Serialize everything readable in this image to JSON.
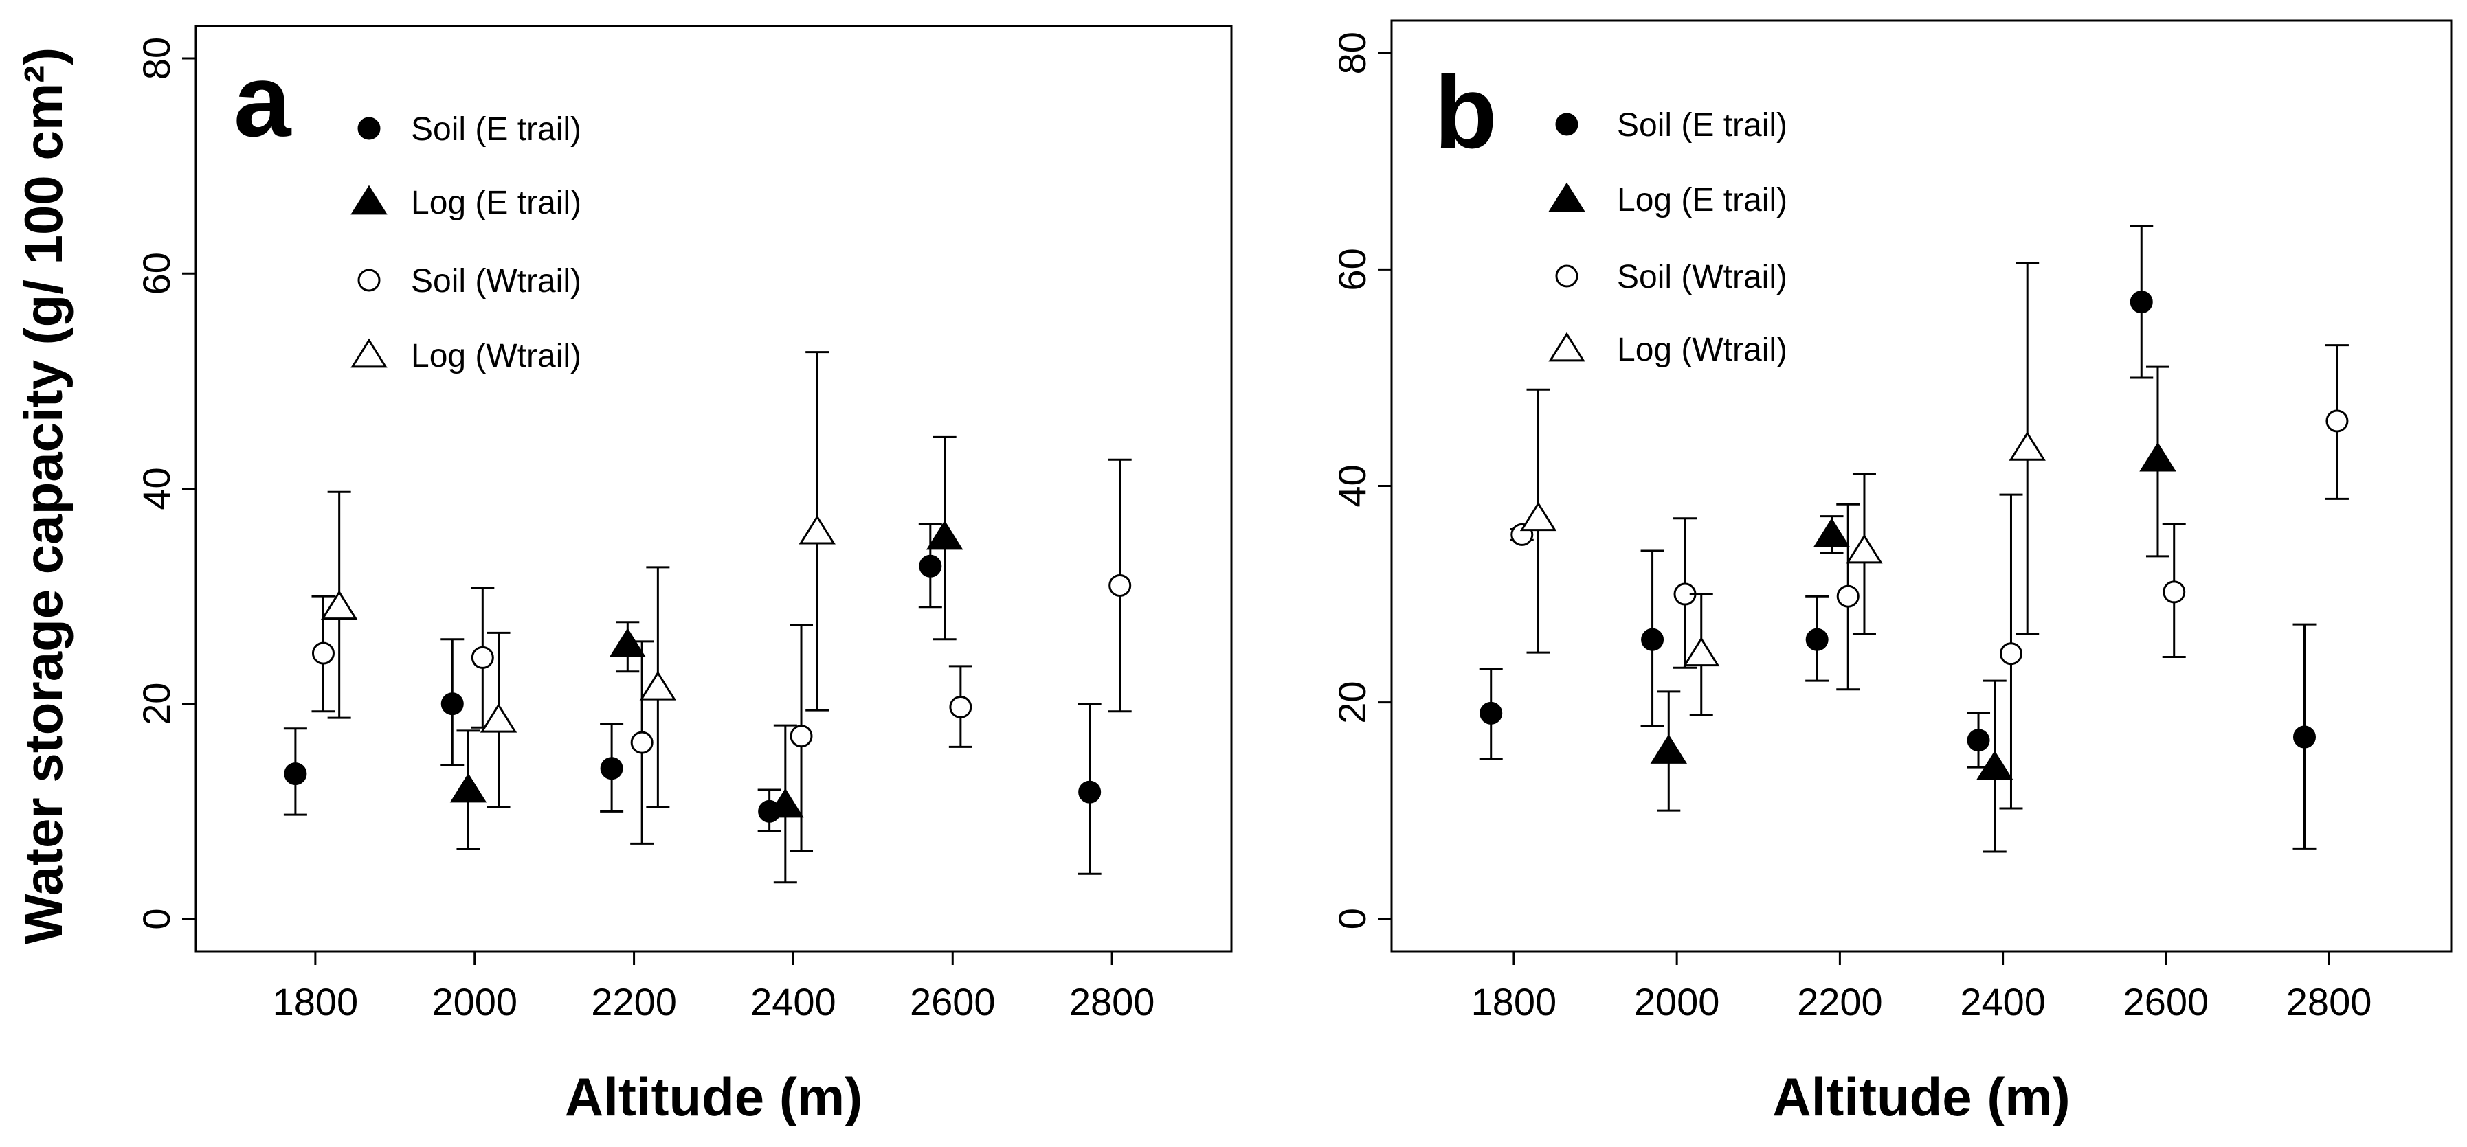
{
  "ylabel_shared": "Water storage capacity (g/ 100 cm²)",
  "chart_data": [
    {
      "panel": "a",
      "type": "scatter",
      "xlabel": "Altitude (m)",
      "ylabel": "Water storage capacity (g/ 100 cm²)",
      "xlim": [
        1650,
        2950
      ],
      "ylim": [
        -3,
        83
      ],
      "xticks": [
        1800,
        2000,
        2200,
        2400,
        2600,
        2800
      ],
      "yticks": [
        0,
        20,
        40,
        60,
        80
      ],
      "legend_position": "top-left",
      "series": [
        {
          "name": "Soil (E trail)",
          "marker": "filled-circle",
          "points": [
            {
              "x": 1775,
              "y": 13.5,
              "lo": 9.7,
              "hi": 17.7
            },
            {
              "x": 1972,
              "y": 20.0,
              "lo": 14.3,
              "hi": 26.0
            },
            {
              "x": 2172,
              "y": 14.0,
              "lo": 10.0,
              "hi": 18.1
            },
            {
              "x": 2370,
              "y": 10.0,
              "lo": 8.2,
              "hi": 12.0
            },
            {
              "x": 2572,
              "y": 32.8,
              "lo": 29.0,
              "hi": 36.7
            },
            {
              "x": 2772,
              "y": 11.8,
              "lo": 4.2,
              "hi": 20.0
            }
          ]
        },
        {
          "name": "Log (E trail)",
          "marker": "filled-triangle",
          "points": [
            {
              "x": 1992,
              "y": 12.0,
              "lo": 6.5,
              "hi": 17.5
            },
            {
              "x": 2192,
              "y": 25.5,
              "lo": 23.0,
              "hi": 27.6
            },
            {
              "x": 2390,
              "y": 10.6,
              "lo": 3.4,
              "hi": 18.0
            },
            {
              "x": 2590,
              "y": 35.5,
              "lo": 26.0,
              "hi": 44.8
            }
          ]
        },
        {
          "name": "Soil (Wtrail)",
          "marker": "open-circle",
          "points": [
            {
              "x": 1810,
              "y": 24.7,
              "lo": 19.3,
              "hi": 30.0
            },
            {
              "x": 2010,
              "y": 24.3,
              "lo": 17.8,
              "hi": 30.8
            },
            {
              "x": 2210,
              "y": 16.4,
              "lo": 7.0,
              "hi": 25.8
            },
            {
              "x": 2410,
              "y": 17.0,
              "lo": 6.3,
              "hi": 27.3
            },
            {
              "x": 2610,
              "y": 19.7,
              "lo": 16.0,
              "hi": 23.5
            },
            {
              "x": 2810,
              "y": 31.0,
              "lo": 19.3,
              "hi": 42.7
            }
          ]
        },
        {
          "name": "Log (Wtrail)",
          "marker": "open-triangle",
          "points": [
            {
              "x": 1830,
              "y": 29.0,
              "lo": 18.7,
              "hi": 39.7
            },
            {
              "x": 2030,
              "y": 18.5,
              "lo": 10.4,
              "hi": 26.6
            },
            {
              "x": 2230,
              "y": 21.5,
              "lo": 10.4,
              "hi": 32.7
            },
            {
              "x": 2430,
              "y": 36.0,
              "lo": 19.4,
              "hi": 52.7
            }
          ]
        }
      ]
    },
    {
      "panel": "b",
      "type": "scatter",
      "xlabel": "Altitude (m)",
      "ylabel": "",
      "xlim": [
        1650,
        2950
      ],
      "ylim": [
        -3,
        83
      ],
      "xticks": [
        1800,
        2000,
        2200,
        2400,
        2600,
        2800
      ],
      "yticks": [
        0,
        20,
        40,
        60,
        80
      ],
      "legend_position": "top-left",
      "series": [
        {
          "name": "Soil (E trail)",
          "marker": "filled-circle",
          "points": [
            {
              "x": 1772,
              "y": 19.0,
              "lo": 14.8,
              "hi": 23.1
            },
            {
              "x": 1970,
              "y": 25.8,
              "lo": 17.8,
              "hi": 34.0
            },
            {
              "x": 2172,
              "y": 25.8,
              "lo": 22.0,
              "hi": 29.8
            },
            {
              "x": 2370,
              "y": 16.5,
              "lo": 14.0,
              "hi": 19.0
            },
            {
              "x": 2570,
              "y": 57.0,
              "lo": 50.0,
              "hi": 64.0
            },
            {
              "x": 2770,
              "y": 16.8,
              "lo": 6.5,
              "hi": 27.2
            }
          ]
        },
        {
          "name": "Log (E trail)",
          "marker": "filled-triangle",
          "points": [
            {
              "x": 1990,
              "y": 15.5,
              "lo": 10.0,
              "hi": 21.0
            },
            {
              "x": 2190,
              "y": 35.5,
              "lo": 33.8,
              "hi": 37.2
            },
            {
              "x": 2390,
              "y": 14.0,
              "lo": 6.2,
              "hi": 22.0
            },
            {
              "x": 2590,
              "y": 42.5,
              "lo": 33.5,
              "hi": 51.0
            }
          ]
        },
        {
          "name": "Soil (Wtrail)",
          "marker": "open-circle",
          "points": [
            {
              "x": 1810,
              "y": 35.5,
              "lo": 35.0,
              "hi": 36.0
            },
            {
              "x": 2010,
              "y": 30.0,
              "lo": 23.2,
              "hi": 37.0
            },
            {
              "x": 2210,
              "y": 29.8,
              "lo": 21.2,
              "hi": 38.3
            },
            {
              "x": 2410,
              "y": 24.5,
              "lo": 10.2,
              "hi": 39.2
            },
            {
              "x": 2610,
              "y": 30.2,
              "lo": 24.2,
              "hi": 36.5
            },
            {
              "x": 2810,
              "y": 46.0,
              "lo": 38.8,
              "hi": 53.0
            }
          ]
        },
        {
          "name": "Log (Wtrail)",
          "marker": "open-triangle",
          "points": [
            {
              "x": 1830,
              "y": 37.0,
              "lo": 24.6,
              "hi": 48.9
            },
            {
              "x": 2030,
              "y": 24.5,
              "lo": 18.8,
              "hi": 30.0
            },
            {
              "x": 2230,
              "y": 34.0,
              "lo": 26.3,
              "hi": 41.1
            },
            {
              "x": 2430,
              "y": 43.5,
              "lo": 26.3,
              "hi": 60.6
            }
          ]
        }
      ]
    }
  ]
}
